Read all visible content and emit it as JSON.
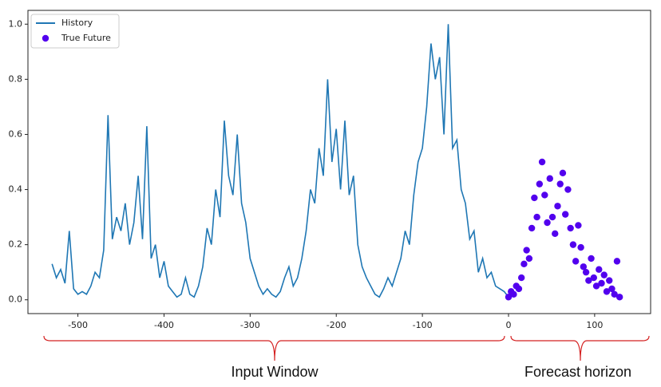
{
  "chart_data": {
    "type": "line",
    "series": [
      {
        "name": "History",
        "type": "line",
        "color": "#1f77b4",
        "x": [
          -530,
          -525,
          -520,
          -515,
          -510,
          -505,
          -500,
          -495,
          -490,
          -485,
          -480,
          -475,
          -470,
          -465,
          -460,
          -455,
          -450,
          -445,
          -440,
          -435,
          -430,
          -425,
          -420,
          -415,
          -410,
          -405,
          -400,
          -395,
          -390,
          -385,
          -380,
          -375,
          -370,
          -365,
          -360,
          -355,
          -350,
          -345,
          -340,
          -335,
          -330,
          -325,
          -320,
          -315,
          -310,
          -305,
          -300,
          -295,
          -290,
          -285,
          -280,
          -275,
          -270,
          -265,
          -260,
          -255,
          -250,
          -245,
          -240,
          -235,
          -230,
          -225,
          -220,
          -215,
          -210,
          -205,
          -200,
          -195,
          -190,
          -185,
          -180,
          -175,
          -170,
          -165,
          -160,
          -155,
          -150,
          -145,
          -140,
          -135,
          -130,
          -125,
          -120,
          -115,
          -110,
          -105,
          -100,
          -95,
          -90,
          -85,
          -80,
          -75,
          -70,
          -65,
          -60,
          -55,
          -50,
          -45,
          -40,
          -35,
          -30,
          -25,
          -20,
          -15,
          -10,
          -5,
          0
        ],
        "values": [
          0.13,
          0.08,
          0.11,
          0.06,
          0.25,
          0.04,
          0.02,
          0.03,
          0.02,
          0.05,
          0.1,
          0.08,
          0.18,
          0.67,
          0.22,
          0.3,
          0.25,
          0.35,
          0.2,
          0.28,
          0.45,
          0.22,
          0.63,
          0.15,
          0.2,
          0.08,
          0.14,
          0.05,
          0.03,
          0.01,
          0.02,
          0.08,
          0.02,
          0.01,
          0.05,
          0.12,
          0.26,
          0.2,
          0.4,
          0.3,
          0.65,
          0.45,
          0.38,
          0.6,
          0.35,
          0.28,
          0.15,
          0.1,
          0.05,
          0.02,
          0.04,
          0.02,
          0.01,
          0.03,
          0.08,
          0.12,
          0.05,
          0.08,
          0.15,
          0.25,
          0.4,
          0.35,
          0.55,
          0.45,
          0.8,
          0.5,
          0.62,
          0.4,
          0.65,
          0.38,
          0.45,
          0.2,
          0.12,
          0.08,
          0.05,
          0.02,
          0.01,
          0.04,
          0.08,
          0.05,
          0.1,
          0.15,
          0.25,
          0.2,
          0.38,
          0.5,
          0.55,
          0.7,
          0.93,
          0.8,
          0.88,
          0.6,
          1.0,
          0.55,
          0.58,
          0.4,
          0.35,
          0.22,
          0.25,
          0.1,
          0.15,
          0.08,
          0.1,
          0.05,
          0.04,
          0.03,
          0.01
        ]
      },
      {
        "name": "True Future",
        "type": "scatter",
        "color": "#5200ee",
        "x": [
          0,
          3,
          6,
          9,
          12,
          15,
          18,
          21,
          24,
          27,
          30,
          33,
          36,
          39,
          42,
          45,
          48,
          51,
          54,
          57,
          60,
          63,
          66,
          69,
          72,
          75,
          78,
          81,
          84,
          87,
          90,
          93,
          96,
          99,
          102,
          105,
          108,
          111,
          114,
          117,
          120,
          123,
          126,
          129
        ],
        "values": [
          0.01,
          0.03,
          0.02,
          0.05,
          0.04,
          0.08,
          0.13,
          0.18,
          0.15,
          0.26,
          0.37,
          0.3,
          0.42,
          0.5,
          0.38,
          0.28,
          0.44,
          0.3,
          0.24,
          0.34,
          0.42,
          0.46,
          0.31,
          0.4,
          0.26,
          0.2,
          0.14,
          0.27,
          0.19,
          0.12,
          0.1,
          0.07,
          0.15,
          0.08,
          0.05,
          0.11,
          0.06,
          0.09,
          0.03,
          0.07,
          0.04,
          0.02,
          0.14,
          0.01
        ]
      }
    ],
    "xlim": [
      -558,
      165
    ],
    "xticks": [
      -500,
      -400,
      -300,
      -200,
      -100,
      0,
      100
    ],
    "ylim": [
      -0.05,
      1.05
    ],
    "yticks": [
      {
        "value": 0,
        "label": "0.0"
      },
      0.2,
      0.4,
      0.6,
      0.8,
      {
        "value": 1,
        "label": "1.0"
      }
    ],
    "legend": "upper left",
    "annotations": [
      "Input Window",
      "Forecast horizon"
    ]
  }
}
